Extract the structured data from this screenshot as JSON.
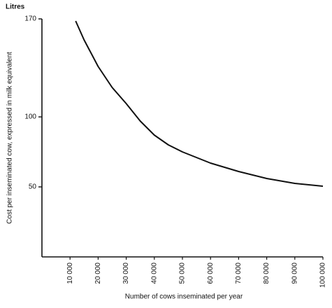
{
  "chart_data": {
    "type": "line",
    "title": "Litres",
    "x_label": "Number of cows inseminated per year",
    "y_label": "Cost per inseminated cow, expressed in milk equivalent",
    "x": [
      12000,
      15000,
      20000,
      25000,
      30000,
      35000,
      40000,
      45000,
      50000,
      60000,
      70000,
      80000,
      90000,
      100000
    ],
    "values": [
      168.5,
      155,
      136,
      121,
      109.5,
      97,
      87,
      80,
      75,
      67,
      61,
      56,
      52.5,
      50.5
    ],
    "color": "#111111",
    "xlim": [
      0,
      100000
    ],
    "xticks": [
      {
        "value": 10000,
        "label": "10 000"
      },
      {
        "value": 20000,
        "label": "20 000"
      },
      {
        "value": 30000,
        "label": "30 000"
      },
      {
        "value": 40000,
        "label": "40 000"
      },
      {
        "value": 50000,
        "label": "50 000"
      },
      {
        "value": 60000,
        "label": "60 000"
      },
      {
        "value": 70000,
        "label": "70 000"
      },
      {
        "value": 80000,
        "label": "80 000"
      },
      {
        "value": 90000,
        "label": "90 000"
      },
      {
        "value": 100000,
        "label": "100 000"
      }
    ],
    "ylim": [
      0,
      170
    ],
    "yticks": [
      50,
      100,
      170
    ],
    "grid": false
  }
}
